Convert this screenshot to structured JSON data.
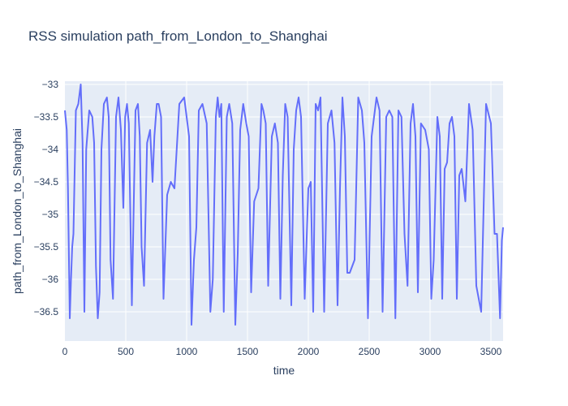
{
  "chart_data": {
    "type": "line",
    "title": "RSS simulation path_from_London_to_Shanghai",
    "xlabel": "time",
    "ylabel": "path_from_London_to_Shanghai",
    "xlim": [
      0,
      3600
    ],
    "ylim": [
      -36.95,
      -32.95
    ],
    "x_ticks": [
      0,
      500,
      1000,
      1500,
      2000,
      2500,
      3000,
      3500
    ],
    "y_ticks": [
      -33,
      -33.5,
      -34,
      -34.5,
      -35,
      -35.5,
      -36,
      -36.5
    ],
    "x_tick_labels": [
      "0",
      "500",
      "1000",
      "1500",
      "2000",
      "2500",
      "3000",
      "3500"
    ],
    "y_tick_labels": [
      "−33",
      "−33.5",
      "−34",
      "−34.5",
      "−35",
      "−35.5",
      "−36",
      "−36.5"
    ],
    "grid": true,
    "colors": {
      "line": "#636efa",
      "plot_bg": "#e5ecf6",
      "grid": "#ffffff",
      "text": "#2a3f5f"
    },
    "series": [
      {
        "x": [
          0,
          15,
          25,
          40,
          50,
          60,
          70,
          90,
          110,
          130,
          145,
          160,
          175,
          200,
          225,
          240,
          255,
          270,
          285,
          300,
          320,
          345,
          360,
          375,
          395,
          420,
          440,
          460,
          480,
          495,
          510,
          525,
          550,
          580,
          600,
          615,
          630,
          650,
          675,
          700,
          720,
          735,
          755,
          770,
          790,
          810,
          840,
          870,
          900,
          940,
          980,
          1000,
          1020,
          1040,
          1060,
          1080,
          1100,
          1130,
          1165,
          1195,
          1215,
          1240,
          1255,
          1270,
          1285,
          1305,
          1330,
          1350,
          1375,
          1400,
          1420,
          1440,
          1465,
          1490,
          1510,
          1530,
          1555,
          1590,
          1615,
          1630,
          1650,
          1670,
          1700,
          1725,
          1750,
          1770,
          1790,
          1810,
          1830,
          1860,
          1880,
          1900,
          1920,
          1940,
          1970,
          2000,
          2020,
          2040,
          2060,
          2080,
          2100,
          2130,
          2160,
          2190,
          2215,
          2240,
          2260,
          2280,
          2300,
          2320,
          2340,
          2380,
          2410,
          2440,
          2460,
          2490,
          2520,
          2540,
          2560,
          2585,
          2610,
          2640,
          2665,
          2690,
          2715,
          2740,
          2765,
          2790,
          2815,
          2840,
          2860,
          2880,
          2900,
          2925,
          2960,
          2990,
          3010,
          3030,
          3060,
          3080,
          3100,
          3120,
          3140,
          3160,
          3180,
          3200,
          3220,
          3240,
          3260,
          3290,
          3320,
          3350,
          3380,
          3420,
          3460,
          3500,
          3530,
          3550,
          3575,
          3590,
          3600
        ],
        "y": [
          -33.4,
          -33.7,
          -34.6,
          -36.6,
          -36.0,
          -35.5,
          -35.3,
          -33.4,
          -33.3,
          -33.0,
          -33.9,
          -36.5,
          -34.0,
          -33.4,
          -33.5,
          -33.9,
          -35.8,
          -36.6,
          -36.2,
          -34.0,
          -33.3,
          -33.2,
          -33.5,
          -35.7,
          -36.3,
          -33.5,
          -33.2,
          -33.7,
          -34.9,
          -33.5,
          -33.3,
          -33.6,
          -36.4,
          -33.4,
          -33.3,
          -33.8,
          -35.5,
          -36.1,
          -33.9,
          -33.7,
          -34.5,
          -33.8,
          -33.3,
          -33.3,
          -33.5,
          -36.3,
          -34.7,
          -34.5,
          -34.6,
          -33.3,
          -33.2,
          -33.5,
          -33.8,
          -36.7,
          -35.7,
          -35.2,
          -33.4,
          -33.3,
          -33.6,
          -36.5,
          -36.0,
          -33.5,
          -33.2,
          -33.5,
          -33.3,
          -36.5,
          -33.5,
          -33.3,
          -33.6,
          -36.7,
          -35.6,
          -33.7,
          -33.3,
          -33.6,
          -33.8,
          -36.2,
          -34.8,
          -34.6,
          -33.3,
          -33.4,
          -33.6,
          -36.1,
          -33.8,
          -33.6,
          -33.9,
          -36.3,
          -34.4,
          -33.3,
          -33.5,
          -36.4,
          -34.0,
          -33.4,
          -33.2,
          -33.5,
          -36.3,
          -34.6,
          -34.5,
          -36.5,
          -33.3,
          -33.4,
          -33.2,
          -36.5,
          -33.6,
          -33.4,
          -33.9,
          -36.4,
          -34.6,
          -33.2,
          -33.8,
          -35.9,
          -35.9,
          -35.7,
          -33.2,
          -33.4,
          -33.9,
          -36.6,
          -33.8,
          -33.5,
          -33.2,
          -33.4,
          -36.5,
          -33.5,
          -33.4,
          -33.5,
          -36.6,
          -33.4,
          -33.5,
          -35.3,
          -36.1,
          -33.6,
          -33.3,
          -33.8,
          -36.2,
          -33.6,
          -33.7,
          -34.0,
          -36.3,
          -35.7,
          -33.5,
          -33.8,
          -36.3,
          -34.3,
          -34.2,
          -33.6,
          -33.5,
          -33.8,
          -36.3,
          -34.4,
          -34.3,
          -34.8,
          -33.3,
          -33.7,
          -36.1,
          -36.5,
          -33.3,
          -33.6,
          -35.3,
          -35.3,
          -36.6,
          -35.4,
          -35.2
        ]
      }
    ]
  }
}
